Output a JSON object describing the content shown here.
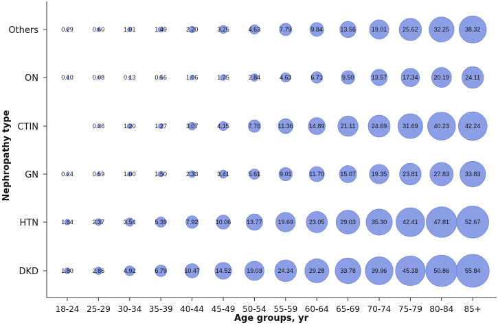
{
  "chart_data": {
    "type": "scatter",
    "subtype": "bubble",
    "xlabel": "Age groups, yr",
    "ylabel": "Nephropathy type",
    "categories": [
      "18-24",
      "25-29",
      "30-34",
      "35-39",
      "40-44",
      "45-49",
      "50-54",
      "55-59",
      "60-64",
      "65-69",
      "70-74",
      "75-79",
      "80-84",
      "85+"
    ],
    "rows": [
      "Others",
      "ON",
      "CTIN",
      "GN",
      "HTN",
      "DKD"
    ],
    "series": [
      {
        "name": "Others",
        "values": [
          0.29,
          0.6,
          1.01,
          1.49,
          2.2,
          3.25,
          4.63,
          7.79,
          9.84,
          13.56,
          19.01,
          25.62,
          32.25,
          38.32
        ]
      },
      {
        "name": "ON",
        "values": [
          0.1,
          0.08,
          0.13,
          0.56,
          1.06,
          1.75,
          2.84,
          4.63,
          6.71,
          9.5,
          13.57,
          17.34,
          20.19,
          24.11
        ]
      },
      {
        "name": "CTIN",
        "values": [
          null,
          0.36,
          1.2,
          1.27,
          3.07,
          4.15,
          7.76,
          11.36,
          14.89,
          21.11,
          24.69,
          31.69,
          40.23,
          42.24
        ]
      },
      {
        "name": "GN",
        "values": [
          0.24,
          0.59,
          1.0,
          1.5,
          2.33,
          3.41,
          5.61,
          9.01,
          11.7,
          15.07,
          19.35,
          23.81,
          27.83,
          33.83
        ]
      },
      {
        "name": "HTN",
        "values": [
          1.64,
          2.37,
          3.54,
          5.39,
          7.92,
          10.06,
          13.77,
          19.69,
          23.05,
          29.03,
          35.3,
          42.41,
          47.81,
          52.67
        ]
      },
      {
        "name": "DKD",
        "values": [
          1.8,
          2.86,
          4.92,
          6.79,
          10.47,
          14.52,
          19.03,
          24.34,
          29.28,
          33.78,
          39.96,
          45.38,
          50.86,
          55.84
        ]
      }
    ],
    "labels": [
      [
        "0.29",
        "0.60",
        "1.01",
        "1.49",
        "2.20",
        "3.25",
        "4.63",
        "7.79",
        "9.84",
        "13.56",
        "19.01",
        "25.62",
        "32.25",
        "38.32"
      ],
      [
        "0.10",
        "0.08",
        "0.13",
        "0.56",
        "1.06",
        "1.75",
        "2.84",
        "4.63",
        "6.71",
        "9.50",
        "13.57",
        "17.34",
        "20.19",
        "24.11"
      ],
      [
        null,
        "0.36",
        "1.20",
        "1.27",
        "3.07",
        "4.15",
        "7.76",
        "11.36",
        "14.89",
        "21.11",
        "24.69",
        "31.69",
        "40.23",
        "42.24"
      ],
      [
        "0.24",
        "0.59",
        "1.00",
        "1.50",
        "2.33",
        "3.41",
        "5.61",
        "9.01",
        "11.70",
        "15.07",
        "19.35",
        "23.81",
        "27.83",
        "33.83"
      ],
      [
        "1.64",
        "2.37",
        "3.54",
        "5.39",
        "7.92",
        "10.06",
        "13.77",
        "19.69",
        "23.05",
        "29.03",
        "35.30",
        "42.41",
        "47.81",
        "52.67"
      ],
      [
        "1.80",
        "2.86",
        "4.92",
        "6.79",
        "10.47",
        "14.52",
        "19.03",
        "24.34",
        "29.28",
        "33.78",
        "39.96",
        "45.38",
        "50.86",
        "55.84"
      ]
    ],
    "bubble_fill": "#8C9FE6",
    "bubble_stroke": "#6F84D9",
    "grid": false,
    "legend": "none"
  }
}
